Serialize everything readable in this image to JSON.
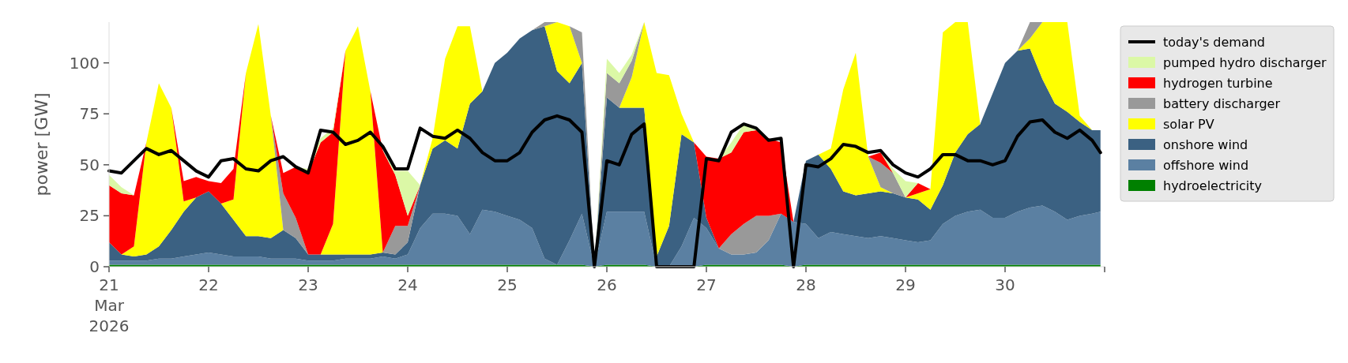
{
  "chart_data": {
    "type": "area",
    "stacked": true,
    "ylabel": "power [GW]",
    "legend": "right",
    "ylim": [
      0,
      120
    ],
    "yticks": [
      0,
      25,
      50,
      75,
      100
    ],
    "xlim": [
      "2026-03-21",
      "2026-03-31"
    ],
    "xticks": [
      {
        "value": "2026-03-21",
        "label": "21\nMar\n2026"
      },
      {
        "value": "2026-03-22",
        "label": "22"
      },
      {
        "value": "2026-03-23",
        "label": "23"
      },
      {
        "value": "2026-03-24",
        "label": "24"
      },
      {
        "value": "2026-03-25",
        "label": "25"
      },
      {
        "value": "2026-03-26",
        "label": "26"
      },
      {
        "value": "2026-03-27",
        "label": "27"
      },
      {
        "value": "2026-03-28",
        "label": "28"
      },
      {
        "value": "2026-03-29",
        "label": "29"
      },
      {
        "value": "2026-03-30",
        "label": "30"
      },
      {
        "value": "2026-03-31",
        "label": null
      }
    ],
    "x": [
      "2026-03-21T00:00",
      "2026-03-21T03:00",
      "2026-03-21T06:00",
      "2026-03-21T09:00",
      "2026-03-21T12:00",
      "2026-03-21T15:00",
      "2026-03-21T18:00",
      "2026-03-21T21:00",
      "2026-03-22T00:00",
      "2026-03-22T03:00",
      "2026-03-22T06:00",
      "2026-03-22T09:00",
      "2026-03-22T12:00",
      "2026-03-22T15:00",
      "2026-03-22T18:00",
      "2026-03-22T21:00",
      "2026-03-23T00:00",
      "2026-03-23T03:00",
      "2026-03-23T06:00",
      "2026-03-23T09:00",
      "2026-03-23T12:00",
      "2026-03-23T15:00",
      "2026-03-23T18:00",
      "2026-03-23T21:00",
      "2026-03-24T00:00",
      "2026-03-24T03:00",
      "2026-03-24T06:00",
      "2026-03-24T09:00",
      "2026-03-24T12:00",
      "2026-03-24T15:00",
      "2026-03-24T18:00",
      "2026-03-24T21:00",
      "2026-03-25T00:00",
      "2026-03-25T03:00",
      "2026-03-25T06:00",
      "2026-03-25T09:00",
      "2026-03-25T12:00",
      "2026-03-25T15:00",
      "2026-03-25T18:00",
      "2026-03-25T21:00",
      "2026-03-26T00:00",
      "2026-03-26T03:00",
      "2026-03-26T06:00",
      "2026-03-26T09:00",
      "2026-03-26T12:00",
      "2026-03-26T15:00",
      "2026-03-26T18:00",
      "2026-03-26T21:00",
      "2026-03-27T00:00",
      "2026-03-27T03:00",
      "2026-03-27T06:00",
      "2026-03-27T09:00",
      "2026-03-27T12:00",
      "2026-03-27T15:00",
      "2026-03-27T18:00",
      "2026-03-27T21:00",
      "2026-03-28T00:00",
      "2026-03-28T03:00",
      "2026-03-28T06:00",
      "2026-03-28T09:00",
      "2026-03-28T12:00",
      "2026-03-28T15:00",
      "2026-03-28T18:00",
      "2026-03-28T21:00",
      "2026-03-29T00:00",
      "2026-03-29T03:00",
      "2026-03-29T06:00",
      "2026-03-29T09:00",
      "2026-03-29T12:00",
      "2026-03-29T15:00",
      "2026-03-29T18:00",
      "2026-03-29T21:00",
      "2026-03-30T00:00",
      "2026-03-30T03:00",
      "2026-03-30T06:00",
      "2026-03-30T09:00",
      "2026-03-30T12:00",
      "2026-03-30T15:00",
      "2026-03-30T18:00",
      "2026-03-30T21:00",
      "2026-03-30T23:00"
    ],
    "series": [
      {
        "name": "hydroelectricity",
        "color": "#008000",
        "values": [
          1,
          1,
          1,
          1,
          1,
          1,
          1,
          1,
          1,
          1,
          1,
          1,
          1,
          1,
          1,
          1,
          1,
          1,
          1,
          1,
          1,
          1,
          1,
          1,
          1,
          1,
          1,
          1,
          1,
          1,
          1,
          1,
          1,
          1,
          1,
          1,
          1,
          1,
          1,
          0,
          1,
          1,
          1,
          1,
          0,
          null,
          null,
          0,
          1,
          1,
          1,
          1,
          1,
          1,
          1,
          0,
          1,
          1,
          1,
          1,
          1,
          1,
          1,
          1,
          1,
          1,
          1,
          1,
          1,
          1,
          1,
          1,
          1,
          1,
          1,
          1,
          1,
          1,
          1,
          1,
          1
        ]
      },
      {
        "name": "offshore wind",
        "color": "#5b80a2",
        "values": [
          2,
          2,
          2,
          2,
          3,
          3,
          4,
          5,
          6,
          5,
          4,
          4,
          4,
          3,
          3,
          3,
          2,
          2,
          2,
          3,
          3,
          3,
          4,
          3,
          5,
          18,
          25,
          25,
          24,
          15,
          27,
          26,
          24,
          22,
          18,
          3,
          0,
          12,
          25,
          0,
          26,
          26,
          26,
          26,
          0,
          0,
          10,
          24,
          18,
          8,
          5,
          5,
          6,
          12,
          25,
          22,
          20,
          13,
          16,
          15,
          14,
          13,
          14,
          13,
          12,
          11,
          12,
          20,
          24,
          26,
          27,
          23,
          23,
          26,
          28,
          29,
          26,
          22,
          24,
          25,
          26
        ]
      },
      {
        "name": "onshore wind",
        "color": "#3b6182",
        "values": [
          9,
          3,
          2,
          3,
          6,
          14,
          22,
          28,
          30,
          25,
          18,
          10,
          10,
          10,
          14,
          10,
          3,
          3,
          3,
          2,
          2,
          2,
          2,
          2,
          6,
          21,
          32,
          36,
          33,
          64,
          58,
          73,
          80,
          89,
          97,
          114,
          95,
          77,
          74,
          0,
          56,
          51,
          51,
          51,
          5,
          20,
          55,
          37,
          5,
          0,
          null,
          null,
          null,
          null,
          null,
          0,
          31,
          41,
          31,
          21,
          20,
          22,
          22,
          22,
          21,
          21,
          15,
          19,
          31,
          38,
          42,
          61,
          76,
          79,
          78,
          62,
          53,
          53,
          46,
          41,
          40
        ]
      },
      {
        "name": "solar PV",
        "color": "#ffff00",
        "values": [
          null,
          0,
          5,
          55,
          80,
          60,
          5,
          0,
          null,
          0,
          10,
          80,
          104,
          60,
          0,
          null,
          null,
          0,
          15,
          100,
          112,
          80,
          0,
          null,
          null,
          0,
          5,
          40,
          60,
          38,
          0,
          null,
          null,
          null,
          null,
          0,
          24,
          28,
          0,
          null,
          null,
          0,
          15,
          42,
          90,
          74,
          10,
          0,
          null,
          null,
          null,
          null,
          null,
          null,
          null,
          null,
          null,
          0,
          10,
          50,
          70,
          18,
          2,
          0,
          0,
          3,
          10,
          75,
          64,
          55,
          0,
          null,
          null,
          0,
          5,
          28,
          40,
          44,
          3,
          0,
          null
        ]
      },
      {
        "name": "battery discharger",
        "color": "#999999",
        "values": [
          null,
          null,
          null,
          null,
          null,
          null,
          null,
          null,
          null,
          null,
          null,
          null,
          null,
          0,
          18,
          10,
          0,
          null,
          null,
          null,
          null,
          null,
          0,
          14,
          8,
          0,
          null,
          null,
          null,
          null,
          null,
          null,
          null,
          null,
          0,
          2,
          0,
          0,
          15,
          0,
          12,
          12,
          8,
          0,
          null,
          null,
          null,
          null,
          null,
          0,
          10,
          15,
          18,
          12,
          0,
          null,
          null,
          null,
          null,
          null,
          null,
          0,
          12,
          10,
          0,
          null,
          null,
          null,
          null,
          null,
          null,
          null,
          null,
          0,
          8,
          0,
          null,
          null,
          null,
          null,
          null
        ]
      },
      {
        "name": "hydrogen turbine",
        "color": "#ff0000",
        "values": [
          28,
          30,
          25,
          0,
          null,
          0,
          10,
          10,
          5,
          10,
          15,
          0,
          null,
          0,
          10,
          25,
          40,
          55,
          45,
          0,
          null,
          0,
          50,
          25,
          5,
          0,
          null,
          null,
          null,
          null,
          null,
          null,
          null,
          null,
          null,
          null,
          null,
          null,
          null,
          null,
          null,
          null,
          null,
          null,
          null,
          null,
          null,
          0,
          30,
          44,
          40,
          45,
          42,
          38,
          35,
          0,
          null,
          null,
          null,
          null,
          null,
          0,
          5,
          0,
          0,
          5,
          0,
          null,
          null,
          null,
          null,
          null,
          null,
          null,
          null,
          null,
          null,
          null,
          null,
          null,
          null
        ]
      },
      {
        "name": "pumped hydro discharger",
        "color": "#dbf8a6",
        "values": [
          5,
          3,
          0,
          null,
          null,
          null,
          null,
          null,
          null,
          null,
          null,
          null,
          null,
          null,
          null,
          0,
          2,
          2,
          2,
          0,
          null,
          null,
          0,
          2,
          22,
          0,
          null,
          null,
          null,
          null,
          null,
          null,
          null,
          null,
          null,
          null,
          null,
          null,
          null,
          0,
          7,
          5,
          3,
          0,
          null,
          null,
          null,
          null,
          null,
          0,
          5,
          4,
          0,
          null,
          null,
          null,
          null,
          null,
          null,
          null,
          null,
          null,
          0,
          2,
          8,
          0,
          null,
          null,
          null,
          null,
          null,
          null,
          null,
          null,
          null,
          null,
          null,
          null,
          null,
          null,
          null
        ]
      },
      {
        "name": "today's demand",
        "type": "line",
        "color": "#000000",
        "values": [
          47,
          46,
          52,
          58,
          55,
          57,
          52,
          47,
          44,
          52,
          53,
          48,
          47,
          52,
          54,
          49,
          46,
          67,
          66,
          60,
          62,
          66,
          59,
          48,
          48,
          68,
          64,
          63,
          67,
          63,
          56,
          52,
          52,
          56,
          66,
          72,
          74,
          72,
          66,
          0,
          52,
          50,
          65,
          70,
          0,
          0,
          0,
          0,
          53,
          52,
          66,
          70,
          68,
          62,
          63,
          0,
          50,
          49,
          53,
          60,
          59,
          56,
          57,
          50,
          46,
          44,
          48,
          55,
          55,
          52,
          52,
          50,
          52,
          64,
          71,
          72,
          66,
          63,
          67,
          62,
          56
        ]
      }
    ]
  }
}
